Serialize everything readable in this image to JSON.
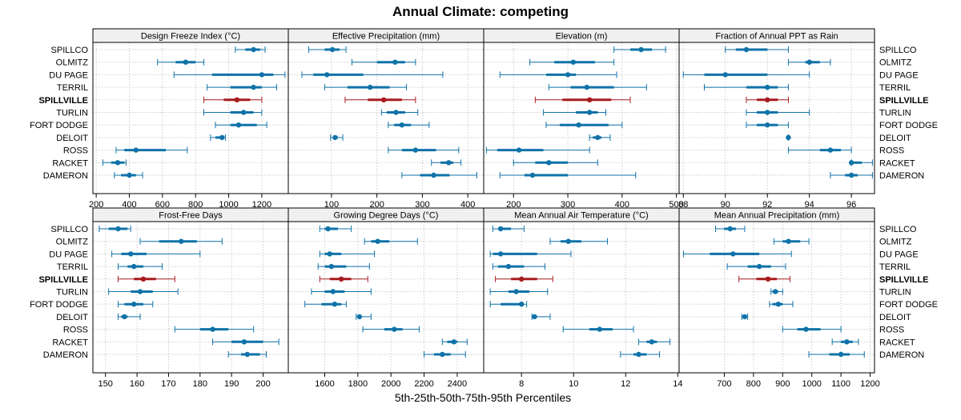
{
  "chart_data": {
    "type": "percentile-dotplot",
    "title": "Annual Climate: competing",
    "xlabel": "5th-25th-50th-75th-95th Percentiles",
    "sites": [
      "SPILLCO",
      "OLMITZ",
      "DU PAGE",
      "TERRIL",
      "SPILLVILLE",
      "TURLIN",
      "FORT DODGE",
      "DELOIT",
      "ROSS",
      "RACKET",
      "DAMERON"
    ],
    "highlight_site": "SPILLVILLE",
    "colors": {
      "normal": "#0f72a8",
      "highlight": "#a81b1f",
      "strip": "#f0f0f0",
      "grid": "#c8c8c8"
    },
    "panels": [
      {
        "name": "Design Freeze Index (°C)",
        "xlim": [
          180,
          1360
        ],
        "ticks": [
          200,
          400,
          600,
          800,
          1000,
          1200
        ],
        "percentiles": [
          [
            1040,
            1100,
            1150,
            1190,
            1220
          ],
          [
            570,
            680,
            740,
            800,
            850
          ],
          [
            670,
            900,
            1200,
            1270,
            1340
          ],
          [
            870,
            1010,
            1150,
            1200,
            1290
          ],
          [
            850,
            970,
            1050,
            1130,
            1200
          ],
          [
            850,
            1010,
            1090,
            1150,
            1200
          ],
          [
            920,
            1010,
            1060,
            1170,
            1230
          ],
          [
            890,
            920,
            960,
            970,
            980
          ],
          [
            320,
            370,
            440,
            620,
            750
          ],
          [
            240,
            290,
            330,
            370,
            380
          ],
          [
            310,
            350,
            400,
            440,
            480
          ]
        ]
      },
      {
        "name": "Effective Precipitation (mm)",
        "xlim": [
          5,
          435
        ],
        "ticks": [
          100,
          200,
          300,
          400
        ],
        "percentiles": [
          [
            50,
            85,
            102,
            118,
            132
          ],
          [
            145,
            200,
            240,
            262,
            285
          ],
          [
            35,
            60,
            90,
            170,
            345
          ],
          [
            85,
            135,
            185,
            228,
            265
          ],
          [
            130,
            180,
            215,
            255,
            285
          ],
          [
            210,
            222,
            242,
            262,
            290
          ],
          [
            225,
            238,
            255,
            275,
            315
          ],
          [
            98,
            103,
            108,
            114,
            125
          ],
          [
            225,
            255,
            285,
            330,
            380
          ],
          [
            320,
            340,
            358,
            368,
            385
          ],
          [
            255,
            295,
            325,
            360,
            420
          ]
        ]
      },
      {
        "name": "Elevation (m)",
        "xlim": [
          145,
          505
        ],
        "ticks": [
          200,
          300,
          400,
          500
        ],
        "percentiles": [
          [
            385,
            415,
            435,
            455,
            480
          ],
          [
            230,
            275,
            310,
            350,
            385
          ],
          [
            175,
            260,
            300,
            315,
            390
          ],
          [
            265,
            305,
            335,
            385,
            445
          ],
          [
            240,
            290,
            340,
            380,
            415
          ],
          [
            255,
            315,
            340,
            355,
            370
          ],
          [
            260,
            285,
            320,
            375,
            400
          ],
          [
            340,
            346,
            355,
            362,
            378
          ],
          [
            150,
            170,
            210,
            255,
            340
          ],
          [
            200,
            240,
            265,
            300,
            355
          ],
          [
            175,
            220,
            235,
            300,
            425
          ]
        ]
      },
      {
        "name": "Fraction of Annual PPT as Rain",
        "xlim": [
          87.8,
          97.1
        ],
        "ticks": [
          88,
          90,
          92,
          94,
          96
        ],
        "percentiles": [
          [
            90,
            90.5,
            91,
            92,
            93
          ],
          [
            93,
            93.8,
            94,
            94.5,
            95
          ],
          [
            88,
            89,
            90,
            92,
            94
          ],
          [
            89,
            91,
            92,
            92.5,
            93
          ],
          [
            91,
            91.5,
            92,
            92.5,
            93
          ],
          [
            91,
            91.5,
            92,
            92.5,
            94
          ],
          [
            91,
            91.5,
            92,
            92.5,
            93
          ],
          [
            93,
            93,
            93,
            93,
            93
          ],
          [
            93,
            94.5,
            95,
            95.5,
            96
          ],
          [
            96,
            96,
            96,
            96.5,
            97
          ],
          [
            95,
            95.7,
            96,
            96.3,
            97
          ]
        ]
      },
      {
        "name": "Frost-Free Days",
        "xlim": [
          146,
          208
        ],
        "ticks": [
          150,
          160,
          170,
          180,
          190,
          200
        ],
        "percentiles": [
          [
            148,
            151,
            154,
            157,
            158
          ],
          [
            161,
            167,
            174,
            179,
            187
          ],
          [
            152,
            155,
            158,
            163,
            180
          ],
          [
            154,
            157,
            159,
            162,
            168
          ],
          [
            154,
            159,
            162,
            166,
            172
          ],
          [
            151,
            158,
            161,
            165,
            173
          ],
          [
            154,
            156,
            159,
            162,
            165
          ],
          [
            154,
            155,
            156,
            157,
            161
          ],
          [
            172,
            180,
            184,
            189,
            197
          ],
          [
            184,
            190,
            194,
            200,
            205
          ],
          [
            189,
            193,
            195,
            199,
            201
          ]
        ]
      },
      {
        "name": "Growing Degree Days (°C)",
        "xlim": [
          1380,
          2560
        ],
        "ticks": [
          1600,
          1800,
          2000,
          2200,
          2400
        ],
        "percentiles": [
          [
            1570,
            1600,
            1620,
            1680,
            1760
          ],
          [
            1840,
            1880,
            1920,
            1990,
            2160
          ],
          [
            1570,
            1600,
            1630,
            1700,
            1900
          ],
          [
            1560,
            1600,
            1640,
            1730,
            1870
          ],
          [
            1570,
            1630,
            1700,
            1760,
            1860
          ],
          [
            1520,
            1600,
            1650,
            1720,
            1880
          ],
          [
            1480,
            1580,
            1660,
            1700,
            1730
          ],
          [
            1790,
            1800,
            1810,
            1820,
            1880
          ],
          [
            1830,
            1960,
            2020,
            2070,
            2170
          ],
          [
            2310,
            2340,
            2380,
            2400,
            2460
          ],
          [
            2200,
            2260,
            2310,
            2360,
            2450
          ]
        ]
      },
      {
        "name": "Mean Annual Air Temperature (°C)",
        "xlim": [
          6.55,
          14.05
        ],
        "ticks": [
          8,
          10,
          12,
          14
        ],
        "percentiles": [
          [
            6.9,
            7.1,
            7.2,
            7.6,
            8.1
          ],
          [
            9.1,
            9.5,
            9.8,
            10.3,
            11.3
          ],
          [
            6.8,
            6.9,
            7.2,
            8.6,
            9.9
          ],
          [
            6.9,
            7.1,
            7.5,
            8.1,
            8.9
          ],
          [
            7.0,
            7.6,
            8.0,
            8.6,
            9.2
          ],
          [
            6.8,
            7.5,
            7.8,
            8.3,
            9.0
          ],
          [
            6.8,
            7.2,
            8.0,
            8.0,
            8.2
          ],
          [
            8.4,
            8.4,
            8.5,
            8.6,
            9.1
          ],
          [
            9.6,
            10.6,
            11.0,
            11.5,
            12.3
          ],
          [
            12.5,
            12.8,
            13.0,
            13.2,
            13.7
          ],
          [
            11.8,
            12.3,
            12.5,
            12.8,
            13.3
          ]
        ]
      },
      {
        "name": "Mean Annual Precipitation (mm)",
        "xlim": [
          545,
          1215
        ],
        "ticks": [
          700,
          800,
          900,
          1000,
          1100,
          1200
        ],
        "percentiles": [
          [
            670,
            700,
            720,
            740,
            770
          ],
          [
            870,
            900,
            920,
            960,
            990
          ],
          [
            560,
            650,
            730,
            820,
            930
          ],
          [
            710,
            780,
            820,
            860,
            910
          ],
          [
            750,
            810,
            850,
            880,
            925
          ],
          [
            860,
            865,
            875,
            885,
            900
          ],
          [
            855,
            865,
            885,
            900,
            935
          ],
          [
            760,
            765,
            770,
            775,
            780
          ],
          [
            900,
            950,
            980,
            1030,
            1100
          ],
          [
            1070,
            1100,
            1120,
            1140,
            1160
          ],
          [
            990,
            1060,
            1100,
            1130,
            1180
          ]
        ]
      }
    ]
  }
}
